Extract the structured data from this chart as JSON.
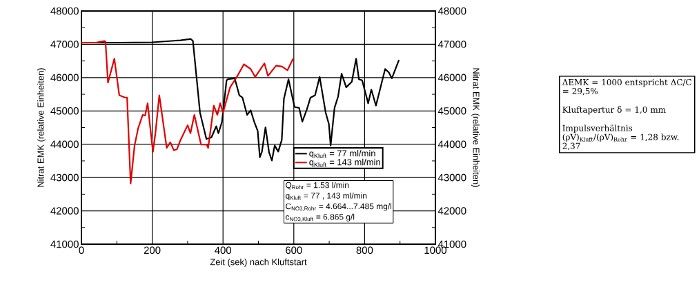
{
  "chart_data": {
    "type": "line",
    "xlabel": "Zeit (sek) nach Kluftstart",
    "ylabel": "Nitrat EMK (relative Einheiten)",
    "y2label": "Nitrat EMK (relative Einheiten)",
    "xlim": [
      0,
      1000
    ],
    "xticks": [
      0,
      200,
      400,
      600,
      800,
      1000
    ],
    "ylim": [
      41000,
      48000
    ],
    "yticks": [
      41000,
      42000,
      43000,
      44000,
      45000,
      46000,
      47000,
      48000
    ],
    "y2lim": [
      41000,
      48000
    ],
    "y2ticks": [
      41000,
      42000,
      43000,
      44000,
      45000,
      46000,
      47000,
      48000
    ],
    "grid": true,
    "legend": "bottom right",
    "marker": "none",
    "line_style": "solid",
    "series": [
      {
        "name": "q$_{Kluft}$ = 77 ml/min",
        "color": "#000000",
        "x": [
          0,
          100,
          200,
          280,
          309,
          315,
          335,
          353,
          367,
          381,
          387,
          397,
          410,
          413,
          433,
          446,
          455,
          468,
          478,
          488,
          498,
          504,
          510,
          520,
          530,
          538,
          546,
          556,
          566,
          572,
          585,
          602,
          615,
          624,
          637,
          647,
          660,
          673,
          690,
          699,
          704,
          715,
          725,
          735,
          748,
          764,
          776,
          784,
          793,
          810,
          819,
          832,
          845,
          858,
          868,
          877,
          897
        ],
        "values": [
          47050,
          47050,
          47060,
          47120,
          47160,
          47100,
          44950,
          44160,
          44200,
          44540,
          44330,
          44670,
          45910,
          45950,
          45980,
          45470,
          45400,
          44880,
          45020,
          44680,
          44400,
          43610,
          43780,
          44510,
          43760,
          43510,
          43960,
          43780,
          44130,
          45360,
          45950,
          45120,
          45090,
          44680,
          45050,
          45400,
          45470,
          46020,
          44950,
          44610,
          43960,
          45090,
          45430,
          46120,
          45710,
          45880,
          46570,
          45950,
          45920,
          45230,
          45640,
          45160,
          45710,
          46260,
          46160,
          45980,
          46530
        ]
      },
      {
        "name": "q$_{Kluft}$ = 143 ml/min",
        "color": "#e00000",
        "x": [
          0,
          40,
          65,
          68,
          75,
          93,
          107,
          124,
          129,
          139,
          150,
          160,
          173,
          180,
          187,
          194,
          202,
          209,
          220,
          241,
          251,
          261,
          270,
          280,
          300,
          308,
          319,
          338,
          354,
          358,
          374,
          384,
          392,
          400,
          420,
          439,
          459,
          478,
          491,
          517,
          527,
          550,
          567,
          582,
          598
        ],
        "values": [
          47050,
          47050,
          47100,
          47080,
          45850,
          46570,
          45470,
          45400,
          45400,
          42820,
          43950,
          44470,
          44880,
          44860,
          45230,
          44540,
          43780,
          44330,
          45470,
          43890,
          44060,
          43820,
          43850,
          44130,
          44570,
          44330,
          44880,
          43990,
          43990,
          43890,
          45160,
          44880,
          45230,
          44950,
          45710,
          46020,
          46400,
          46260,
          46020,
          46430,
          46050,
          46360,
          46330,
          46220,
          46570
        ]
      }
    ],
    "annotations": [
      "Q$_{Rohr}$ = 1.53 l/min",
      "q$_{Kluft}$ = 77 ,  143 ml/min",
      "C$_{NO3,Rohr}$ = 4.664...7.485 mg/l",
      "c$_{NO3,Kluft}$ = 6.865 g/l",
      "ΔEMK = 1000 entspricht ΔC/C = 29,5%",
      "Kluftapertur δ = 1,0 mm",
      "Impulsverhältnis (ρV)$_{Kluft}$/(ρV)$_{Rohr}$ = 1,28 bzw. 2,37"
    ]
  }
}
